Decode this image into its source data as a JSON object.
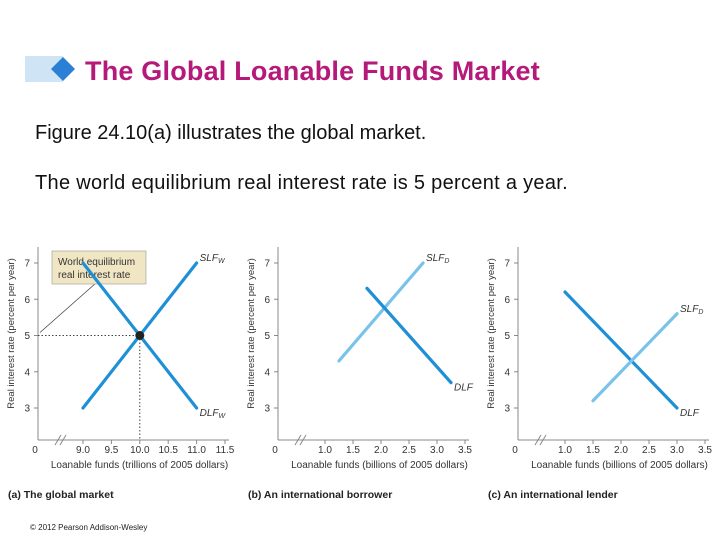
{
  "slide": {
    "title": "The Global Loanable Funds Market",
    "bullet1": "Figure 24.10(a) illustrates the global market.",
    "bullet2": "The world equilibrium real interest rate is 5 percent a year.",
    "copyright": "© 2012 Pearson Addison-Wesley"
  },
  "colors": {
    "title": "#b5197a",
    "diamond": "#2b7fd4",
    "deco_band": "#cfe4f5",
    "dark_blue_line": "#1f8fd6",
    "light_blue_line": "#79c3ea",
    "grid": "#888888",
    "callout_fill": "#f1e6c4"
  },
  "chart_data": [
    {
      "type": "line",
      "caption": "(a) The global market",
      "ylabel": "Real interest rate (percent per year)",
      "xlabel": "Loanable funds (trillions of 2005 dollars)",
      "y_ticks": [
        "3",
        "4",
        "5",
        "6",
        "7"
      ],
      "x_ticks": [
        "9.0",
        "9.5",
        "10.0",
        "10.5",
        "11.0",
        "11.5"
      ],
      "x_tick_values": [
        9.0,
        9.5,
        10.0,
        10.5,
        11.0,
        11.5
      ],
      "origin_label": "0",
      "xlim": [
        9.0,
        11.5
      ],
      "ylim": [
        3,
        7
      ],
      "series": [
        {
          "name": "SLF",
          "subscript": "W",
          "x": [
            9.0,
            11.0
          ],
          "y": [
            3.0,
            7.0
          ],
          "color": "dark"
        },
        {
          "name": "DLF",
          "subscript": "W",
          "x": [
            9.0,
            11.0
          ],
          "y": [
            7.0,
            3.0
          ],
          "color": "dark"
        }
      ],
      "equilibrium": {
        "x": 10.0,
        "y": 5.0
      },
      "callout_line1": "World equilibrium",
      "callout_line2": "real interest rate"
    },
    {
      "type": "line",
      "caption": "(b) An international borrower",
      "ylabel": "Real interest rate (percent per year)",
      "xlabel": "Loanable funds (billions of 2005 dollars)",
      "y_ticks": [
        "3",
        "4",
        "5",
        "6",
        "7"
      ],
      "x_ticks": [
        "1.0",
        "1.5",
        "2.0",
        "2.5",
        "3.0",
        "3.5"
      ],
      "x_tick_values": [
        1.0,
        1.5,
        2.0,
        2.5,
        3.0,
        3.5
      ],
      "origin_label": "0",
      "xlim": [
        1.0,
        3.5
      ],
      "ylim": [
        3,
        7
      ],
      "series": [
        {
          "name": "SLF",
          "subscript": "D",
          "x": [
            1.25,
            2.75
          ],
          "y": [
            4.3,
            7.0
          ],
          "color": "light"
        },
        {
          "name": "DLF",
          "subscript": "",
          "x": [
            1.75,
            3.25
          ],
          "y": [
            6.3,
            3.7
          ],
          "color": "dark"
        }
      ]
    },
    {
      "type": "line",
      "caption": "(c) An international lender",
      "ylabel": "Real interest rate (percent per year)",
      "xlabel": "Loanable funds (billions of 2005 dollars)",
      "y_ticks": [
        "3",
        "4",
        "5",
        "6",
        "7"
      ],
      "x_ticks": [
        "1.0",
        "1.5",
        "2.0",
        "2.5",
        "3.0",
        "3.5"
      ],
      "x_tick_values": [
        1.0,
        1.5,
        2.0,
        2.5,
        3.0,
        3.5
      ],
      "origin_label": "0",
      "xlim": [
        1.0,
        3.5
      ],
      "ylim": [
        3,
        7
      ],
      "series": [
        {
          "name": "DLF",
          "subscript": "",
          "x": [
            1.0,
            3.0
          ],
          "y": [
            6.2,
            3.0
          ],
          "color": "dark"
        },
        {
          "name": "SLF",
          "subscript": "D",
          "x": [
            1.5,
            3.0
          ],
          "y": [
            3.2,
            5.6
          ],
          "color": "light"
        }
      ]
    }
  ]
}
